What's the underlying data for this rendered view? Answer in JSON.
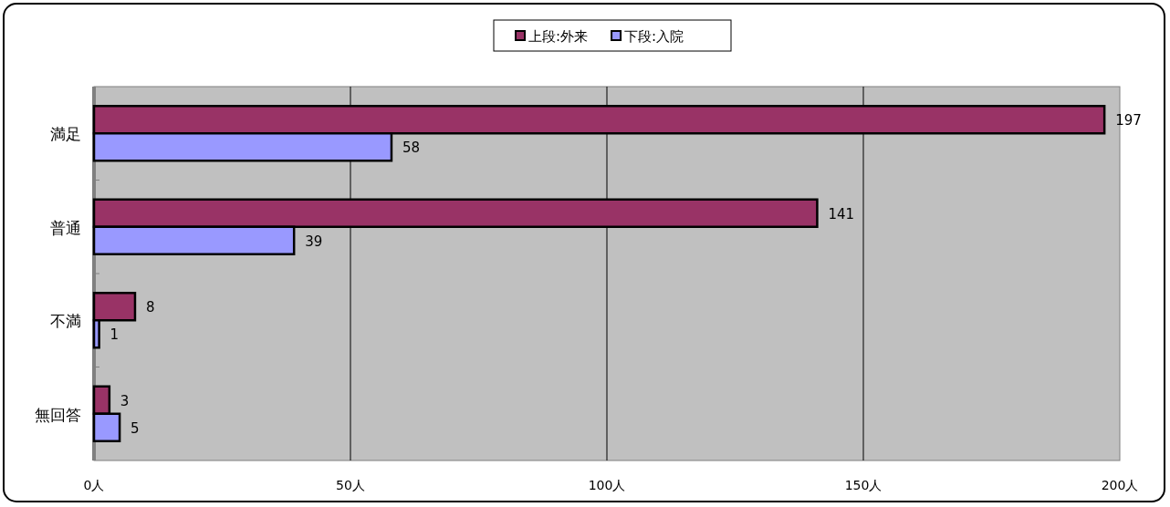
{
  "chart_data": {
    "type": "bar",
    "orientation": "horizontal",
    "categories": [
      "満足",
      "普通",
      "不満",
      "無回答"
    ],
    "series": [
      {
        "name": "上段:外来",
        "color": "#993366",
        "values": [
          197,
          141,
          8,
          3
        ]
      },
      {
        "name": "下段:入院",
        "color": "#9999ff",
        "values": [
          58,
          39,
          1,
          5
        ]
      }
    ],
    "xlim": [
      0,
      200
    ],
    "xticks": [
      {
        "value": 0,
        "label": "0人"
      },
      {
        "value": 50,
        "label": "50人"
      },
      {
        "value": 100,
        "label": "100人"
      },
      {
        "value": 150,
        "label": "150人"
      },
      {
        "value": 200,
        "label": "200人"
      }
    ],
    "grid": "x",
    "legend": "top",
    "data_labels": true
  }
}
